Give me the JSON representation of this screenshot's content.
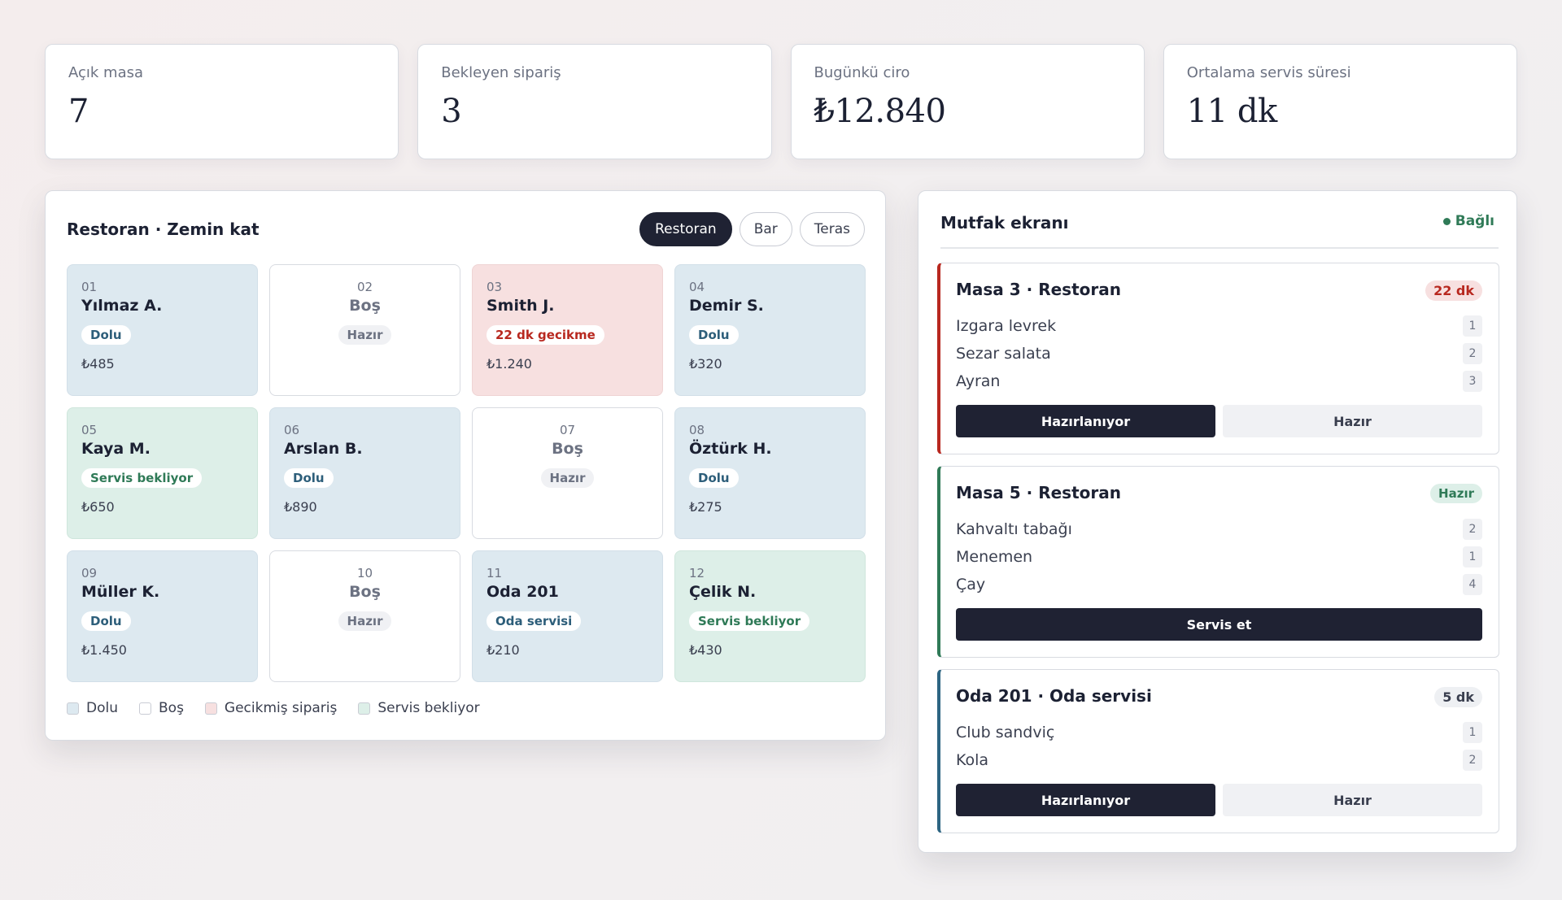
{
  "stats": [
    {
      "label": "Açık masa",
      "value": "7"
    },
    {
      "label": "Bekleyen sipariş",
      "value": "3"
    },
    {
      "label": "Bugünkü ciro",
      "value": "₺12.840"
    },
    {
      "label": "Ortalama servis süresi",
      "value": "11 dk"
    }
  ],
  "floor": {
    "title": "Restoran · Zemin kat",
    "tabs": [
      "Restoran",
      "Bar",
      "Teras"
    ],
    "active_tab": "Restoran",
    "tables": [
      {
        "number": "01",
        "name": "Yılmaz A.",
        "status": "Dolu",
        "amount": "₺485",
        "state": "dolu"
      },
      {
        "number": "02",
        "name": "Boş",
        "status": "Hazır",
        "amount": "",
        "state": "bos"
      },
      {
        "number": "03",
        "name": "Smith J.",
        "status": "22 dk gecikme",
        "amount": "₺1.240",
        "state": "gecik"
      },
      {
        "number": "04",
        "name": "Demir S.",
        "status": "Dolu",
        "amount": "₺320",
        "state": "dolu"
      },
      {
        "number": "05",
        "name": "Kaya M.",
        "status": "Servis bekliyor",
        "amount": "₺650",
        "state": "servis"
      },
      {
        "number": "06",
        "name": "Arslan B.",
        "status": "Dolu",
        "amount": "₺890",
        "state": "dolu"
      },
      {
        "number": "07",
        "name": "Boş",
        "status": "Hazır",
        "amount": "",
        "state": "bos"
      },
      {
        "number": "08",
        "name": "Öztürk H.",
        "status": "Dolu",
        "amount": "₺275",
        "state": "dolu"
      },
      {
        "number": "09",
        "name": "Müller K.",
        "status": "Dolu",
        "amount": "₺1.450",
        "state": "dolu"
      },
      {
        "number": "10",
        "name": "Boş",
        "status": "Hazır",
        "amount": "",
        "state": "bos"
      },
      {
        "number": "11",
        "name": "Oda 201",
        "status": "Oda servisi",
        "amount": "₺210",
        "state": "dolu"
      },
      {
        "number": "12",
        "name": "Çelik N.",
        "status": "Servis bekliyor",
        "amount": "₺430",
        "state": "servis"
      }
    ],
    "legend": [
      {
        "label": "Dolu",
        "color": "#dde9f0"
      },
      {
        "label": "Boş",
        "color": "#ffffff"
      },
      {
        "label": "Gecikmiş sipariş",
        "color": "#f7e0e0"
      },
      {
        "label": "Servis bekliyor",
        "color": "#ddefe8"
      }
    ]
  },
  "kitchen": {
    "title": "Mutfak ekranı",
    "connection": "Bağlı",
    "orders": [
      {
        "title": "Masa 3 · Restoran",
        "badge": "22 dk",
        "state": "gecik",
        "items": [
          {
            "name": "Izgara levrek",
            "qty": "1"
          },
          {
            "name": "Sezar salata",
            "qty": "2"
          },
          {
            "name": "Ayran",
            "qty": "3"
          }
        ],
        "actions": [
          {
            "label": "Hazırlanıyor",
            "style": "dark"
          },
          {
            "label": "Hazır",
            "style": "light"
          }
        ]
      },
      {
        "title": "Masa 5 · Restoran",
        "badge": "Hazır",
        "state": "hazir",
        "items": [
          {
            "name": "Kahvaltı tabağı",
            "qty": "2"
          },
          {
            "name": "Menemen",
            "qty": "1"
          },
          {
            "name": "Çay",
            "qty": "4"
          }
        ],
        "actions": [
          {
            "label": "Servis et",
            "style": "dark"
          }
        ]
      },
      {
        "title": "Oda 201 · Oda servisi",
        "badge": "5 dk",
        "state": "oda",
        "items": [
          {
            "name": "Club sandviç",
            "qty": "1"
          },
          {
            "name": "Kola",
            "qty": "2"
          }
        ],
        "actions": [
          {
            "label": "Hazırlanıyor",
            "style": "dark"
          },
          {
            "label": "Hazır",
            "style": "light"
          }
        ]
      }
    ]
  }
}
